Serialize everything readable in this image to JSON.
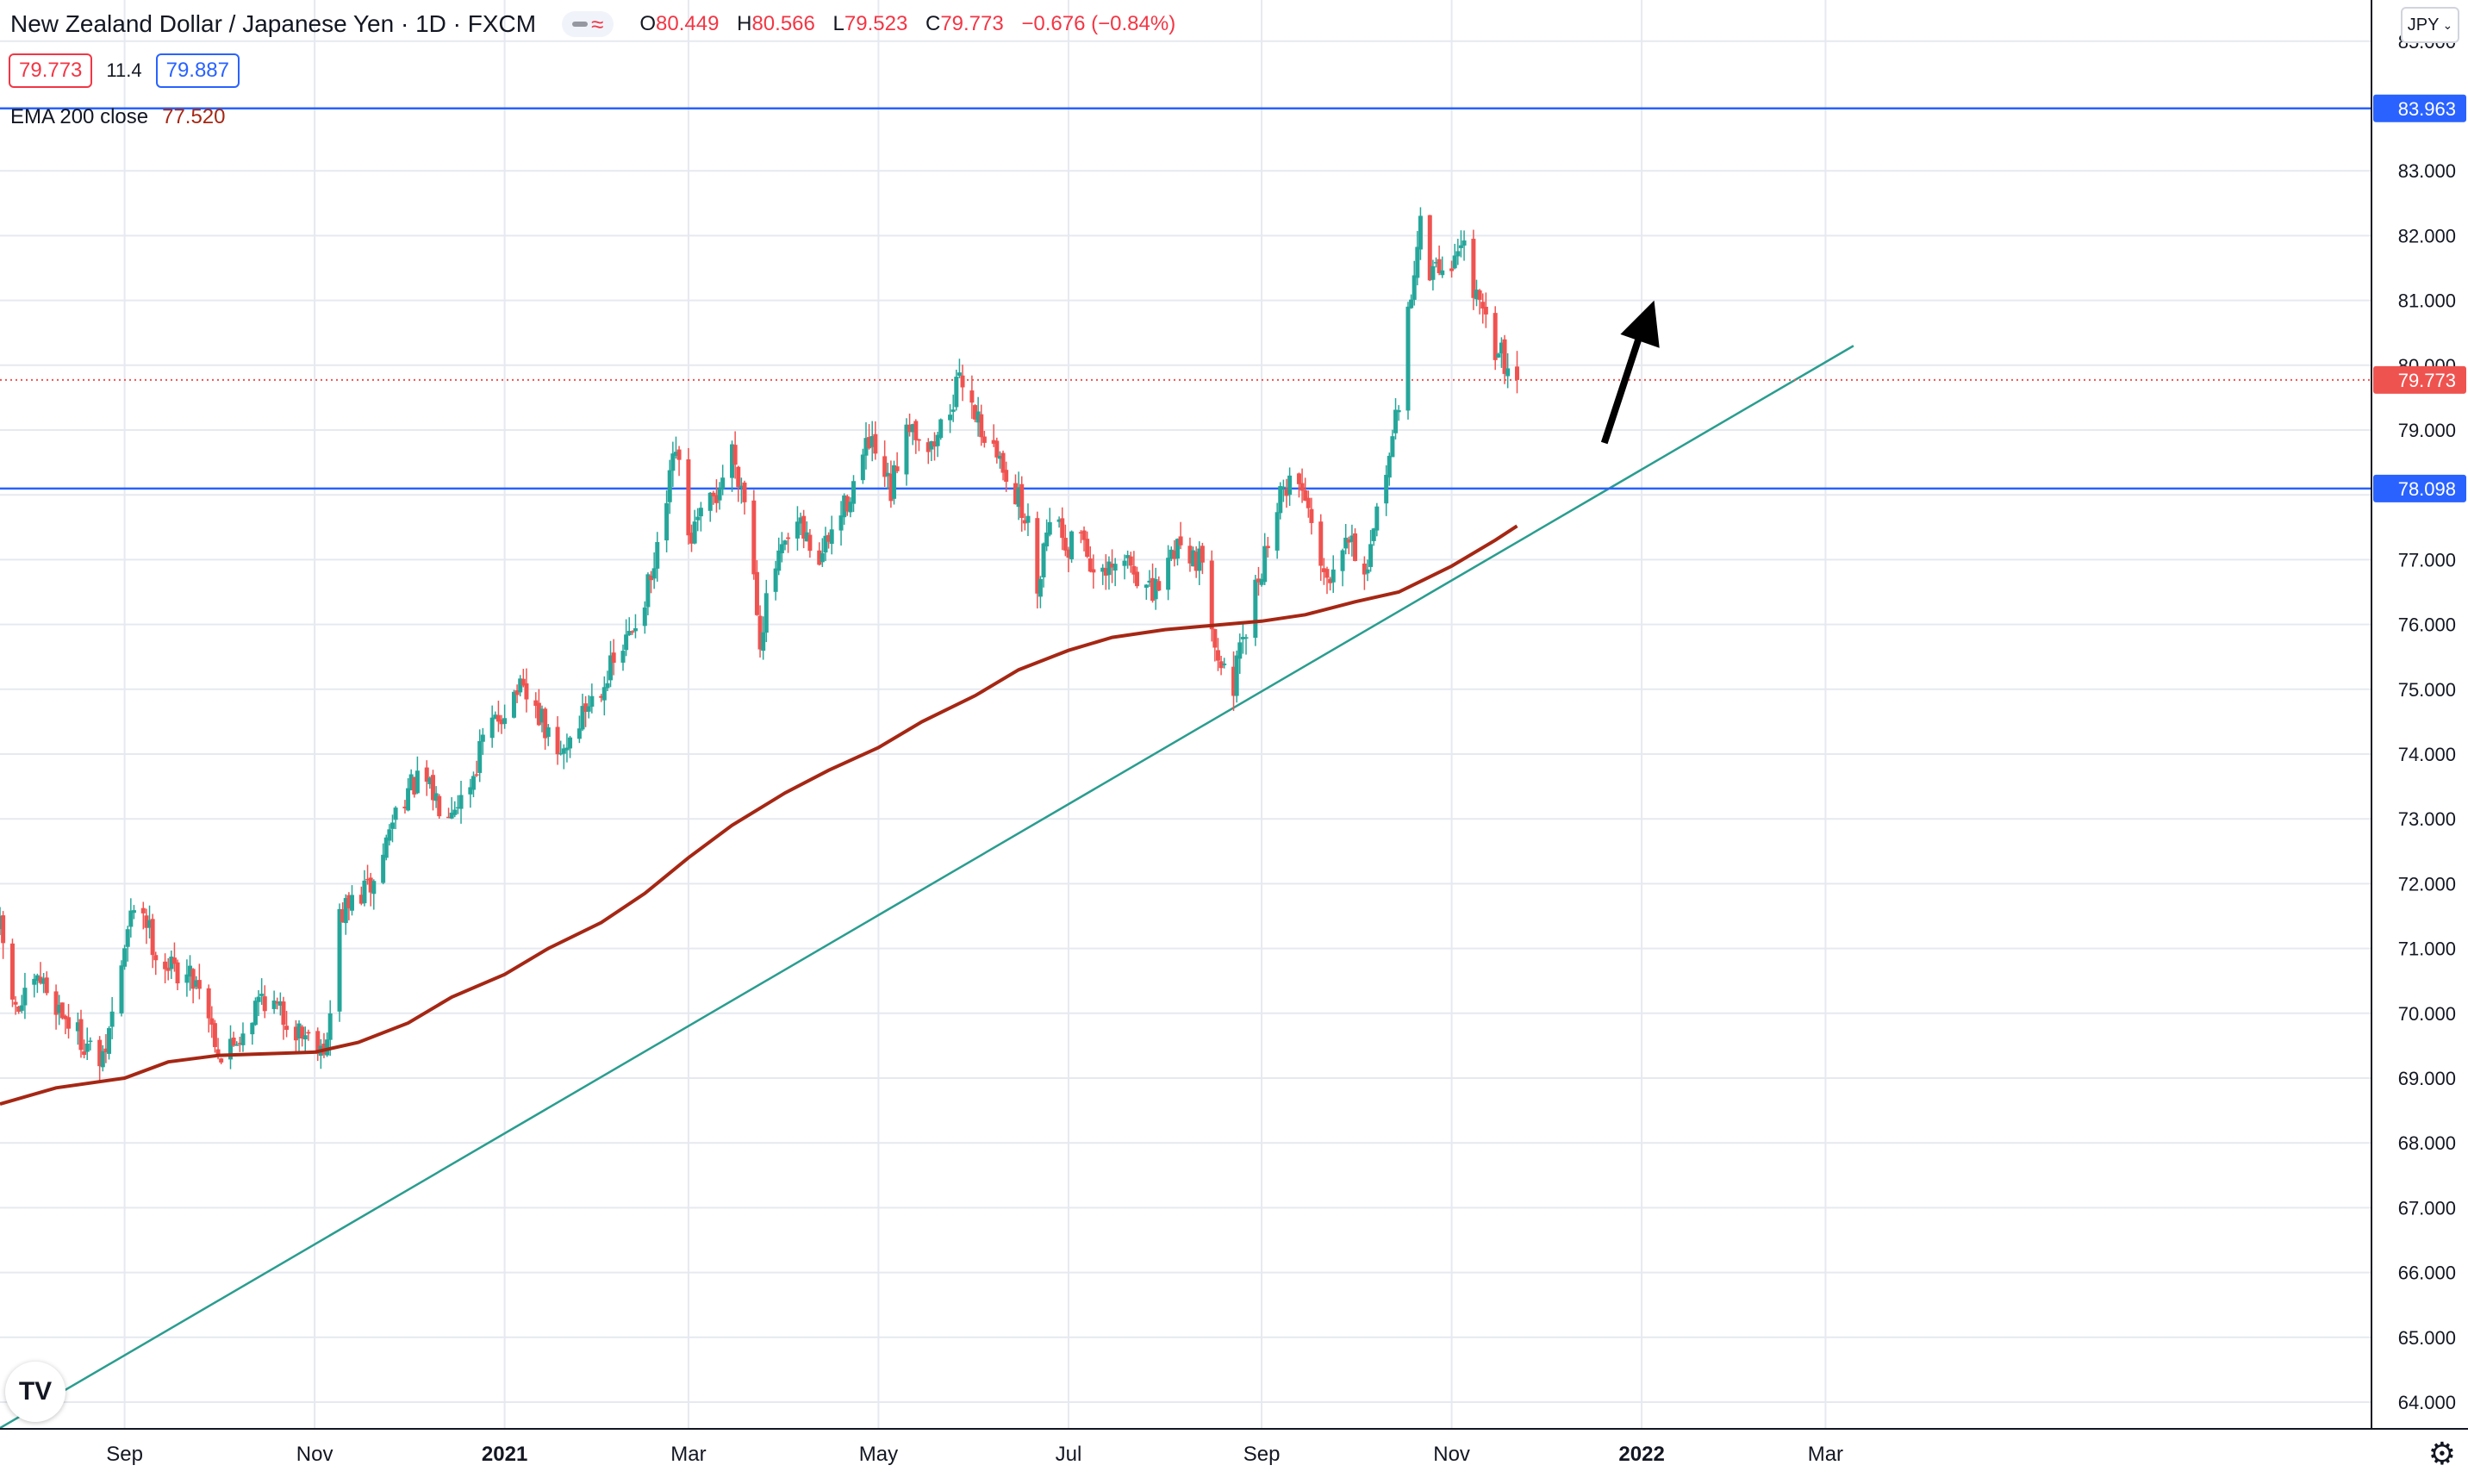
{
  "header": {
    "symbol_title": "New Zealand Dollar / Japanese Yen · 1D · FXCM",
    "ohlc": [
      {
        "key": "O",
        "value": "80.449"
      },
      {
        "key": "H",
        "value": "80.566"
      },
      {
        "key": "L",
        "value": "79.523"
      },
      {
        "key": "C",
        "value": "79.773"
      },
      {
        "key": "",
        "value": "−0.676 (−0.84%)"
      }
    ]
  },
  "price_boxes": {
    "sell": "79.773",
    "spread": "11.4",
    "buy": "79.887"
  },
  "ema_legend": {
    "label": "EMA 200 close",
    "value": "77.520"
  },
  "currency_button": "JPY",
  "colors": {
    "up": "#26a69a",
    "down": "#ef5350",
    "ema": "#a52714",
    "hline": "#2962ff",
    "trendline": "#2a9d8f",
    "grid": "#e6e9ef",
    "arrow": "#000000"
  },
  "chart_data": {
    "type": "candlestick",
    "title": "New Zealand Dollar / Japanese Yen · 1D · FXCM",
    "ylim": [
      63.6,
      85.1
    ],
    "y_ticks": [
      "64.000",
      "65.000",
      "66.000",
      "67.000",
      "68.000",
      "69.000",
      "70.000",
      "71.000",
      "72.000",
      "73.000",
      "74.000",
      "75.000",
      "76.000",
      "77.000",
      "78.000",
      "79.000",
      "80.000",
      "81.000",
      "82.000",
      "83.000",
      "85.000"
    ],
    "x_ticks": [
      "Sep",
      "Nov",
      "2021",
      "Mar",
      "May",
      "Jul",
      "Sep",
      "Nov",
      "2022",
      "Mar"
    ],
    "x_start": "2020-07-23",
    "price_anchors": [
      [
        "2020-07-23",
        71.3
      ],
      [
        "2020-07-28",
        70.0
      ],
      [
        "2020-08-05",
        70.5
      ],
      [
        "2020-08-15",
        69.8
      ],
      [
        "2020-08-25",
        69.2
      ],
      [
        "2020-09-01",
        71.0
      ],
      [
        "2020-09-05",
        71.9
      ],
      [
        "2020-09-12",
        70.8
      ],
      [
        "2020-09-25",
        70.5
      ],
      [
        "2020-10-02",
        69.3
      ],
      [
        "2020-10-10",
        69.8
      ],
      [
        "2020-10-15",
        70.3
      ],
      [
        "2020-10-25",
        69.8
      ],
      [
        "2020-11-05",
        69.5
      ],
      [
        "2020-11-09",
        71.5
      ],
      [
        "2020-11-15",
        71.8
      ],
      [
        "2020-11-20",
        72.0
      ],
      [
        "2020-11-28",
        73.3
      ],
      [
        "2020-12-05",
        73.6
      ],
      [
        "2020-12-12",
        73.2
      ],
      [
        "2020-12-20",
        73.4
      ],
      [
        "2020-12-25",
        74.2
      ],
      [
        "2021-01-05",
        75.0
      ],
      [
        "2021-01-12",
        74.6
      ],
      [
        "2021-01-18",
        73.9
      ],
      [
        "2021-01-28",
        74.8
      ],
      [
        "2021-02-08",
        75.6
      ],
      [
        "2021-02-18",
        76.8
      ],
      [
        "2021-02-25",
        78.7
      ],
      [
        "2021-03-01",
        77.3
      ],
      [
        "2021-03-10",
        78.0
      ],
      [
        "2021-03-15",
        78.7
      ],
      [
        "2021-03-20",
        77.8
      ],
      [
        "2021-03-24",
        75.8
      ],
      [
        "2021-03-28",
        76.8
      ],
      [
        "2021-04-05",
        77.5
      ],
      [
        "2021-04-12",
        77.0
      ],
      [
        "2021-04-20",
        77.8
      ],
      [
        "2021-04-28",
        78.8
      ],
      [
        "2021-05-05",
        78.0
      ],
      [
        "2021-05-10",
        79.2
      ],
      [
        "2021-05-18",
        78.7
      ],
      [
        "2021-05-25",
        79.5
      ],
      [
        "2021-05-28",
        79.8
      ],
      [
        "2021-06-05",
        78.8
      ],
      [
        "2021-06-12",
        78.3
      ],
      [
        "2021-06-18",
        77.5
      ],
      [
        "2021-06-20",
        76.3
      ],
      [
        "2021-06-25",
        77.8
      ],
      [
        "2021-07-01",
        77.2
      ],
      [
        "2021-07-05",
        77.5
      ],
      [
        "2021-07-10",
        76.6
      ],
      [
        "2021-07-20",
        77.0
      ],
      [
        "2021-07-28",
        76.4
      ],
      [
        "2021-08-05",
        77.3
      ],
      [
        "2021-08-12",
        77.0
      ],
      [
        "2021-08-19",
        75.4
      ],
      [
        "2021-08-22",
        74.9
      ],
      [
        "2021-08-28",
        76.1
      ],
      [
        "2021-09-05",
        77.7
      ],
      [
        "2021-09-10",
        78.3
      ],
      [
        "2021-09-15",
        78.0
      ],
      [
        "2021-09-22",
        76.7
      ],
      [
        "2021-09-28",
        77.5
      ],
      [
        "2021-10-05",
        76.7
      ],
      [
        "2021-10-10",
        78.3
      ],
      [
        "2021-10-15",
        79.3
      ],
      [
        "2021-10-18",
        80.8
      ],
      [
        "2021-10-22",
        82.2
      ],
      [
        "2021-10-25",
        81.4
      ],
      [
        "2021-11-01",
        81.6
      ],
      [
        "2021-11-05",
        81.9
      ],
      [
        "2021-11-10",
        80.8
      ],
      [
        "2021-11-15",
        80.3
      ],
      [
        "2021-11-19",
        80.0
      ],
      [
        "2021-11-22",
        79.77
      ]
    ],
    "ema200": {
      "name": "EMA 200 close",
      "points": [
        [
          "2020-07-23",
          68.6
        ],
        [
          "2020-08-10",
          68.85
        ],
        [
          "2020-09-01",
          69.0
        ],
        [
          "2020-09-15",
          69.25
        ],
        [
          "2020-10-01",
          69.35
        ],
        [
          "2020-11-01",
          69.4
        ],
        [
          "2020-11-15",
          69.55
        ],
        [
          "2020-12-01",
          69.85
        ],
        [
          "2020-12-15",
          70.25
        ],
        [
          "2021-01-01",
          70.6
        ],
        [
          "2021-01-15",
          71.0
        ],
        [
          "2021-02-01",
          71.4
        ],
        [
          "2021-02-15",
          71.85
        ],
        [
          "2021-03-01",
          72.4
        ],
        [
          "2021-03-15",
          72.9
        ],
        [
          "2021-04-01",
          73.4
        ],
        [
          "2021-04-15",
          73.75
        ],
        [
          "2021-05-01",
          74.1
        ],
        [
          "2021-05-15",
          74.5
        ],
        [
          "2021-06-01",
          74.9
        ],
        [
          "2021-06-15",
          75.3
        ],
        [
          "2021-07-01",
          75.6
        ],
        [
          "2021-07-15",
          75.8
        ],
        [
          "2021-08-01",
          75.92
        ],
        [
          "2021-08-15",
          75.98
        ],
        [
          "2021-09-01",
          76.05
        ],
        [
          "2021-09-15",
          76.15
        ],
        [
          "2021-10-01",
          76.35
        ],
        [
          "2021-10-15",
          76.5
        ],
        [
          "2021-11-01",
          76.9
        ],
        [
          "2021-11-15",
          77.3
        ],
        [
          "2021-11-22",
          77.52
        ]
      ]
    },
    "horizontal_lines": [
      {
        "price": 83.963,
        "label": "83.963"
      },
      {
        "price": 78.098,
        "label": "78.098"
      }
    ],
    "last_price": {
      "price": 79.773,
      "label": "79.773"
    },
    "trendline": {
      "from": [
        "2020-07-23",
        63.6
      ],
      "to": [
        "2022-03-10",
        80.3
      ]
    },
    "arrow": {
      "from": [
        "2021-12-20",
        78.8
      ],
      "to": [
        "2022-01-05",
        81.0
      ]
    },
    "grid": true
  }
}
